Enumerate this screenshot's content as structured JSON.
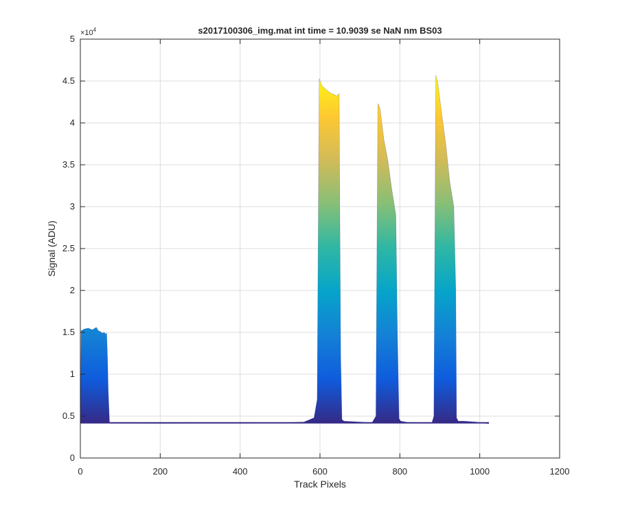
{
  "chart_data": {
    "type": "area",
    "title": "s2017100306_img.mat int time = 10.9039 se  NaN nm BS03",
    "xlabel": "Track Pixels",
    "ylabel": "Signal (ADU)",
    "xlim": [
      0,
      1200
    ],
    "ylim": [
      0,
      50000
    ],
    "xticks": [
      0,
      200,
      400,
      600,
      800,
      1000,
      1200
    ],
    "xtick_labels": [
      "0",
      "200",
      "400",
      "600",
      "800",
      "1000",
      "1200"
    ],
    "yticks": [
      0,
      5000,
      10000,
      15000,
      20000,
      25000,
      30000,
      35000,
      40000,
      45000,
      50000
    ],
    "ytick_labels": [
      "0",
      "0.5",
      "1",
      "1.5",
      "2",
      "2.5",
      "3",
      "3.5",
      "4",
      "4.5",
      "5"
    ],
    "y_exponent": {
      "base": "×10",
      "power": "4"
    },
    "grid": true,
    "legend": "none",
    "colormap": [
      "#352a87",
      "#0f5cdd",
      "#1481d6",
      "#06a4ca",
      "#2eb7a4",
      "#87bf77",
      "#d1bb59",
      "#fec832",
      "#f9fb0e"
    ],
    "baseline": 4200,
    "series": [
      {
        "x": [
          0,
          2,
          10,
          20,
          30,
          40,
          45,
          50,
          55,
          60,
          63,
          66,
          68,
          70,
          73,
          76,
          80
        ],
        "y": [
          4200,
          15200,
          15400,
          15500,
          15300,
          15600,
          15200,
          15100,
          14900,
          15000,
          14800,
          14900,
          12000,
          8000,
          4300,
          4150,
          4150
        ]
      },
      {
        "x": [
          80,
          200,
          300,
          400,
          500,
          560,
          585,
          593,
          598,
          605,
          615,
          625,
          635,
          642,
          648,
          652,
          655,
          660,
          700,
          730
        ],
        "y": [
          4150,
          4130,
          4150,
          4150,
          4200,
          4300,
          4800,
          7000,
          45300,
          44400,
          44000,
          43600,
          43400,
          43200,
          43500,
          12000,
          4600,
          4400,
          4300,
          4200
        ]
      },
      {
        "x": [
          730,
          740,
          745,
          750,
          760,
          770,
          780,
          785,
          790,
          794,
          798,
          802,
          820,
          860,
          880
        ],
        "y": [
          4200,
          5000,
          42300,
          41800,
          38000,
          35500,
          32000,
          30500,
          29000,
          15000,
          4700,
          4400,
          4250,
          4200,
          4200
        ]
      },
      {
        "x": [
          880,
          885,
          890,
          895,
          905,
          915,
          925,
          935,
          940,
          942,
          946,
          960,
          990,
          1020,
          1023
        ],
        "y": [
          4200,
          5000,
          45700,
          44800,
          41000,
          37500,
          33000,
          30000,
          20000,
          4800,
          4400,
          4400,
          4300,
          4100,
          4100
        ]
      }
    ]
  }
}
